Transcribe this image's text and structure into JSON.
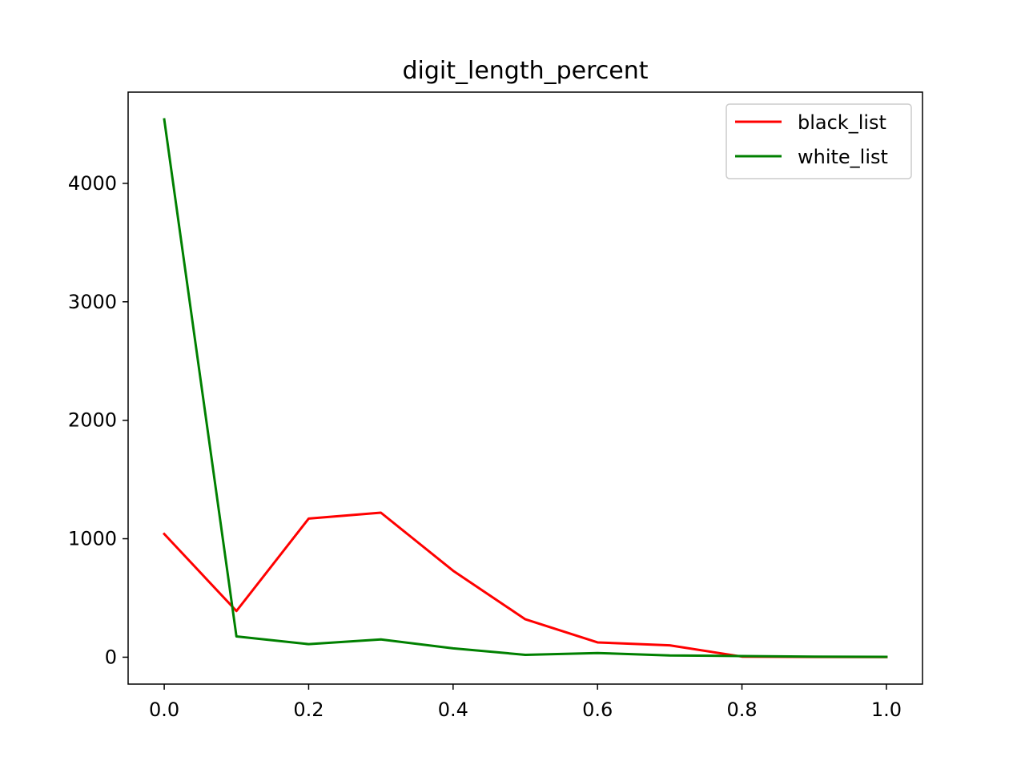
{
  "chart_data": {
    "type": "line",
    "title": "digit_length_percent",
    "xlabel": "",
    "ylabel": "",
    "x": [
      0.0,
      0.1,
      0.2,
      0.3,
      0.4,
      0.5,
      0.6,
      0.7,
      0.8,
      0.9,
      1.0
    ],
    "xlim": [
      -0.05,
      1.05
    ],
    "ylim": [
      -227,
      4770
    ],
    "xticks": [
      0.0,
      0.2,
      0.4,
      0.6,
      0.8,
      1.0
    ],
    "xtick_labels": [
      "0.0",
      "0.2",
      "0.4",
      "0.6",
      "0.8",
      "1.0"
    ],
    "yticks": [
      0,
      1000,
      2000,
      3000,
      4000
    ],
    "ytick_labels": [
      "0",
      "1000",
      "2000",
      "3000",
      "4000"
    ],
    "grid": false,
    "legend_position": "top-right",
    "series": [
      {
        "name": "black_list",
        "color": "#ff0000",
        "values": [
          1040,
          390,
          1170,
          1220,
          730,
          320,
          125,
          100,
          5,
          2,
          1
        ]
      },
      {
        "name": "white_list",
        "color": "#008000",
        "values": [
          4540,
          175,
          110,
          150,
          75,
          20,
          35,
          15,
          10,
          5,
          3
        ]
      }
    ]
  }
}
